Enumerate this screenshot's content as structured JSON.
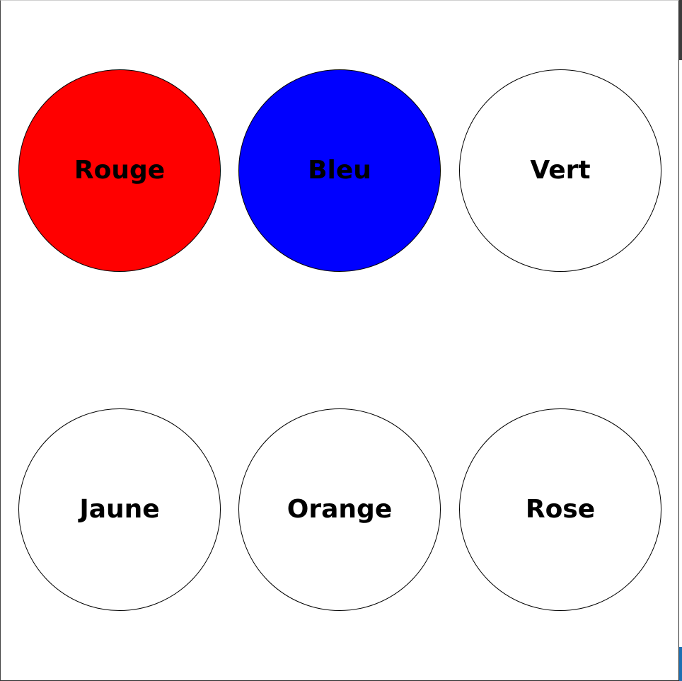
{
  "circles": [
    {
      "label": "Rouge",
      "fill": "#ff0000"
    },
    {
      "label": "Bleu",
      "fill": "#0000ff"
    },
    {
      "label": "Vert",
      "fill": "#ffffff"
    },
    {
      "label": "Jaune",
      "fill": "#ffffff"
    },
    {
      "label": "Orange",
      "fill": "#ffffff"
    },
    {
      "label": "Rose",
      "fill": "#ffffff"
    }
  ]
}
